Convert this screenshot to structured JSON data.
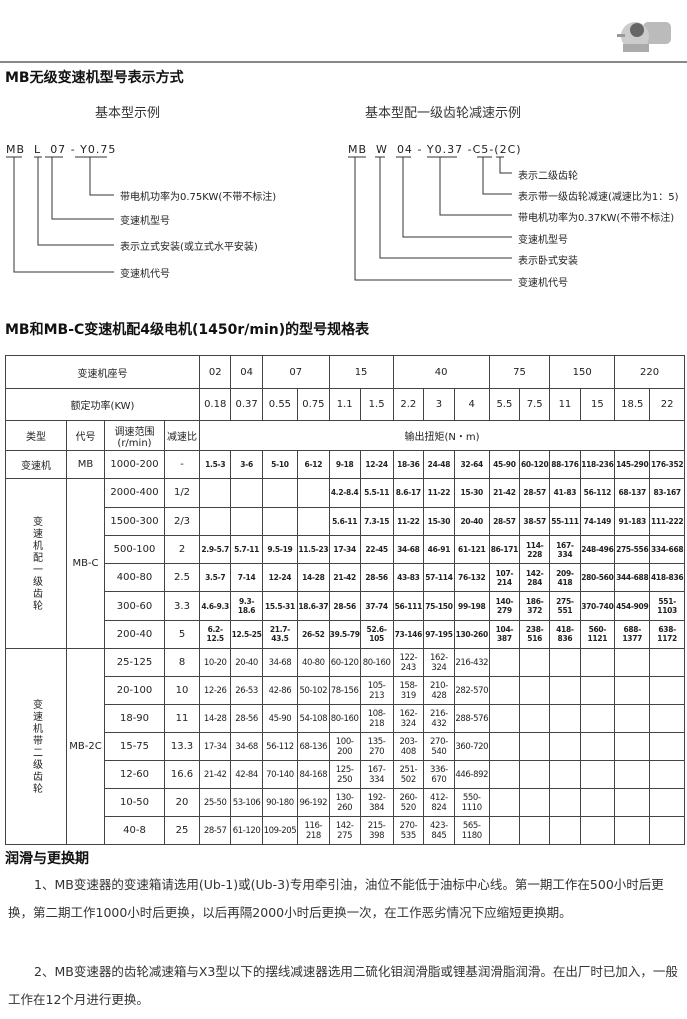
{
  "product_image": "reducer-motor-photo",
  "title": "MB无级变速机型号表示方式",
  "left_example": {
    "subtitle": "基本型示例",
    "code_parts": [
      "MB",
      "L",
      "07",
      "-",
      "Y0.75"
    ],
    "labels": [
      "带电机功率为0.75KW(不带不标注)",
      "变速机型号",
      "表示立式安装(或立式水平安装)",
      "变速机代号"
    ]
  },
  "right_example": {
    "subtitle": "基本型配一级齿轮减速示例",
    "code_parts": [
      "MB",
      "W",
      "04",
      "-",
      "Y0.37",
      "-",
      "C5",
      "-(2C)"
    ],
    "labels": [
      "表示二级齿轮",
      "表示带一级齿轮减速(减速比为1：5)",
      "带电机功率为0.37KW(不带不标注)",
      "变速机型号",
      "表示卧式安装",
      "变速机代号"
    ]
  },
  "table_title": "MB和MB-C变速机配4级电机(1450r/min)的型号规格表",
  "table": {
    "frame_label": "变速机座号",
    "frames": [
      {
        "name": "02",
        "span": 1
      },
      {
        "name": "04",
        "span": 1
      },
      {
        "name": "07",
        "span": 2
      },
      {
        "name": "15",
        "span": 2
      },
      {
        "name": "40",
        "span": 3
      },
      {
        "name": "75",
        "span": 2
      },
      {
        "name": "150",
        "span": 2
      },
      {
        "name": "220",
        "span": 2
      }
    ],
    "power_label": "额定功率(KW)",
    "powers": [
      "0.18",
      "0.37",
      "0.55",
      "0.75",
      "1.1",
      "1.5",
      "2.2",
      "3",
      "4",
      "5.5",
      "7.5",
      "11",
      "15",
      "18.5",
      "22"
    ],
    "col_headers": [
      "类型",
      "代号",
      "调速范围\n(r/min)",
      "减速比"
    ],
    "torque_label": "输出扭矩(N・m)",
    "groups": [
      {
        "type": "变速机",
        "code": "MB",
        "rows": [
          {
            "range": "1000-200",
            "ratio": "-",
            "values": [
              "1.5-3",
              "3-6",
              "5-10",
              "6-12",
              "9-18",
              "12-24",
              "18-36",
              "24-48",
              "32-64",
              "45-90",
              "60-120",
              "88-176",
              "118-236",
              "145-290",
              "176-352"
            ]
          }
        ]
      },
      {
        "type": "变速机配一级齿轮",
        "code": "MB-C",
        "rows": [
          {
            "range": "2000-400",
            "ratio": "1/2",
            "values": [
              "",
              "",
              "",
              "",
              "4.2-8.4",
              "5.5-11",
              "8.6-17",
              "11-22",
              "15-30",
              "21-42",
              "28-57",
              "41-83",
              "56-112",
              "68-137",
              "83-167"
            ]
          },
          {
            "range": "1500-300",
            "ratio": "2/3",
            "values": [
              "",
              "",
              "",
              "",
              "5.6-11",
              "7.3-15",
              "11-22",
              "15-30",
              "20-40",
              "28-57",
              "38-57",
              "55-111",
              "74-149",
              "91-183",
              "111-222"
            ]
          },
          {
            "range": "500-100",
            "ratio": "2",
            "values": [
              "2.9-5.7",
              "5.7-11",
              "9.5-19",
              "11.5-23",
              "17-34",
              "22-45",
              "34-68",
              "46-91",
              "61-121",
              "86-171",
              "114-228",
              "167-334",
              "248-496",
              "275-556",
              "334-668"
            ]
          },
          {
            "range": "400-80",
            "ratio": "2.5",
            "values": [
              "3.5-7",
              "7-14",
              "12-24",
              "14-28",
              "21-42",
              "28-56",
              "43-83",
              "57-114",
              "76-132",
              "107-214",
              "142-284",
              "209-418",
              "280-560",
              "344-688",
              "418-836"
            ]
          },
          {
            "range": "300-60",
            "ratio": "3.3",
            "values": [
              "4.6-9.3",
              "9.3-18.6",
              "15.5-31",
              "18.6-37",
              "28-56",
              "37-74",
              "56-111",
              "75-150",
              "99-198",
              "140-279",
              "186-372",
              "275-551",
              "370-740",
              "454-909",
              "551-1103"
            ]
          },
          {
            "range": "200-40",
            "ratio": "5",
            "values": [
              "6.2-12.5",
              "12.5-25",
              "21.7-43.5",
              "26-52",
              "39.5-79",
              "52.6-105",
              "73-146",
              "97-195",
              "130-260",
              "104-387",
              "238-516",
              "418-836",
              "560-1121",
              "688-1377",
              "638-1172"
            ]
          }
        ]
      },
      {
        "type": "变速机带二级齿轮",
        "code": "MB-2C",
        "rows": [
          {
            "range": "25-125",
            "ratio": "8",
            "values": [
              "10-20",
              "20-40",
              "34-68",
              "40-80",
              "60-120",
              "80-160",
              "122-243",
              "162-324",
              "216-432",
              "",
              "",
              "",
              "",
              "",
              ""
            ]
          },
          {
            "range": "20-100",
            "ratio": "10",
            "values": [
              "12-26",
              "26-53",
              "42-86",
              "50-102",
              "78-156",
              "105-213",
              "158-319",
              "210-428",
              "282-570",
              "",
              "",
              "",
              "",
              "",
              ""
            ]
          },
          {
            "range": "18-90",
            "ratio": "11",
            "values": [
              "14-28",
              "28-56",
              "45-90",
              "54-108",
              "80-160",
              "108-218",
              "162-324",
              "216-432",
              "288-576",
              "",
              "",
              "",
              "",
              "",
              ""
            ]
          },
          {
            "range": "15-75",
            "ratio": "13.3",
            "values": [
              "17-34",
              "34-68",
              "56-112",
              "68-136",
              "100-200",
              "135-270",
              "203-408",
              "270-540",
              "360-720",
              "",
              "",
              "",
              "",
              "",
              ""
            ]
          },
          {
            "range": "12-60",
            "ratio": "16.6",
            "values": [
              "21-42",
              "42-84",
              "70-140",
              "84-168",
              "125-250",
              "167-334",
              "251-502",
              "336-670",
              "446-892",
              "",
              "",
              "",
              "",
              "",
              ""
            ]
          },
          {
            "range": "10-50",
            "ratio": "20",
            "values": [
              "25-50",
              "53-106",
              "90-180",
              "96-192",
              "130-260",
              "192-384",
              "260-520",
              "412-824",
              "550-1110",
              "",
              "",
              "",
              "",
              "",
              ""
            ]
          },
          {
            "range": "40-8",
            "ratio": "25",
            "values": [
              "28-57",
              "61-120",
              "109-205",
              "116-218",
              "142-275",
              "215-398",
              "270-535",
              "423-845",
              "565-1180",
              "",
              "",
              "",
              "",
              "",
              ""
            ]
          }
        ]
      }
    ]
  },
  "lubrication": {
    "title": "润滑与更换期",
    "lines": [
      "1、MB变速器的变速箱请选用(Ub-1)或(Ub-3)专用牵引油，油位不能低于油标中心线。第一期工",
      "作在500小时后更换，第二期工作1000小时后更换，以后再隔2000小时后更换一次，在工作恶劣情况",
      "下应缩短更换期。",
      "2、MB变速器的齿轮减速箱与X3型以下的摆线减速器选用二硫化钼润滑脂或锂基润滑脂润滑。在",
      "出厂时已加入，一般工作在12个月进行更换。"
    ]
  }
}
